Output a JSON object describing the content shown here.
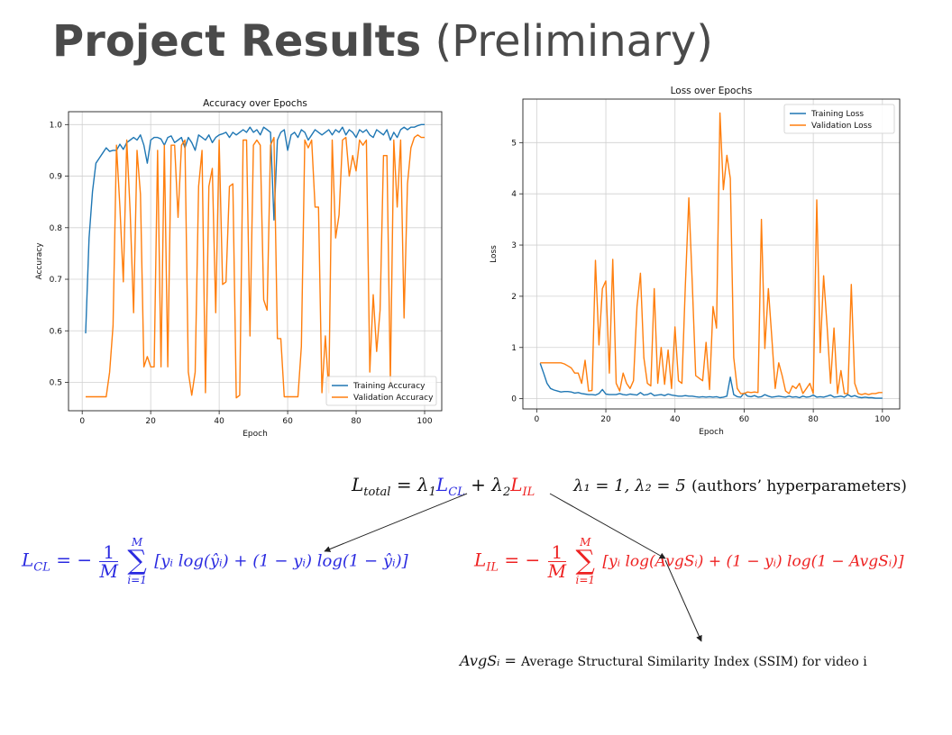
{
  "slide": {
    "title_bold": "Project Results",
    "title_light": "(Preliminary)"
  },
  "chart_data": [
    {
      "type": "line",
      "title": "Accuracy over Epochs",
      "xlabel": "Epoch",
      "ylabel": "Accuracy",
      "xlim": [
        -4,
        105
      ],
      "ylim": [
        0.445,
        1.025
      ],
      "xticks": [
        0,
        20,
        40,
        60,
        80,
        100
      ],
      "yticks": [
        0.5,
        0.6,
        0.7,
        0.8,
        0.9,
        1.0
      ],
      "xtick_labels": [
        "0",
        "20",
        "40",
        "60",
        "80",
        "100"
      ],
      "ytick_labels": [
        "0.5",
        "0.6",
        "0.7",
        "0.8",
        "0.9",
        "1.0"
      ],
      "grid": true,
      "legend_position": "lower-right",
      "x": [
        1,
        2,
        3,
        4,
        5,
        6,
        7,
        8,
        9,
        10,
        11,
        12,
        13,
        14,
        15,
        16,
        17,
        18,
        19,
        20,
        21,
        22,
        23,
        24,
        25,
        26,
        27,
        28,
        29,
        30,
        31,
        32,
        33,
        34,
        35,
        36,
        37,
        38,
        39,
        40,
        41,
        42,
        43,
        44,
        45,
        46,
        47,
        48,
        49,
        50,
        51,
        52,
        53,
        54,
        55,
        56,
        57,
        58,
        59,
        60,
        61,
        62,
        63,
        64,
        65,
        66,
        67,
        68,
        69,
        70,
        71,
        72,
        73,
        74,
        75,
        76,
        77,
        78,
        79,
        80,
        81,
        82,
        83,
        84,
        85,
        86,
        87,
        88,
        89,
        90,
        91,
        92,
        93,
        94,
        95,
        96,
        97,
        98,
        99,
        100
      ],
      "series": [
        {
          "name": "Training Accuracy",
          "color": "#1f77b4",
          "values": [
            0.595,
            0.78,
            0.87,
            0.925,
            0.935,
            0.945,
            0.955,
            0.948,
            0.95,
            0.95,
            0.962,
            0.952,
            0.965,
            0.97,
            0.975,
            0.97,
            0.98,
            0.96,
            0.925,
            0.97,
            0.975,
            0.975,
            0.972,
            0.96,
            0.975,
            0.978,
            0.965,
            0.97,
            0.975,
            0.955,
            0.975,
            0.965,
            0.95,
            0.98,
            0.975,
            0.97,
            0.98,
            0.965,
            0.975,
            0.98,
            0.982,
            0.985,
            0.975,
            0.985,
            0.98,
            0.985,
            0.99,
            0.985,
            0.995,
            0.985,
            0.99,
            0.98,
            0.995,
            0.99,
            0.985,
            0.815,
            0.97,
            0.985,
            0.99,
            0.95,
            0.98,
            0.985,
            0.975,
            0.99,
            0.985,
            0.97,
            0.98,
            0.99,
            0.985,
            0.98,
            0.985,
            0.99,
            0.98,
            0.99,
            0.985,
            0.995,
            0.98,
            0.99,
            0.985,
            0.975,
            0.99,
            0.985,
            0.99,
            0.98,
            0.975,
            0.99,
            0.985,
            0.98,
            0.99,
            0.97,
            0.985,
            0.975,
            0.99,
            0.995,
            0.99,
            0.995,
            0.995,
            0.998,
            1.0,
            1.0
          ]
        },
        {
          "name": "Validation Accuracy",
          "color": "#ff7f0e",
          "values": [
            0.472,
            0.472,
            0.472,
            0.472,
            0.472,
            0.472,
            0.472,
            0.52,
            0.61,
            0.96,
            0.84,
            0.695,
            0.97,
            0.83,
            0.635,
            0.95,
            0.865,
            0.53,
            0.55,
            0.53,
            0.53,
            0.95,
            0.53,
            0.96,
            0.53,
            0.96,
            0.96,
            0.82,
            0.96,
            0.97,
            0.52,
            0.475,
            0.52,
            0.88,
            0.95,
            0.48,
            0.88,
            0.915,
            0.635,
            0.97,
            0.69,
            0.695,
            0.88,
            0.885,
            0.47,
            0.475,
            0.97,
            0.97,
            0.59,
            0.96,
            0.97,
            0.96,
            0.66,
            0.64,
            0.96,
            0.975,
            0.585,
            0.585,
            0.472,
            0.472,
            0.472,
            0.472,
            0.472,
            0.57,
            0.97,
            0.955,
            0.97,
            0.84,
            0.84,
            0.48,
            0.59,
            0.48,
            0.97,
            0.78,
            0.825,
            0.97,
            0.975,
            0.9,
            0.94,
            0.91,
            0.97,
            0.96,
            0.97,
            0.52,
            0.67,
            0.56,
            0.64,
            0.94,
            0.94,
            0.5,
            0.97,
            0.84,
            0.97,
            0.625,
            0.885,
            0.955,
            0.975,
            0.98,
            0.975,
            0.975
          ]
        }
      ]
    },
    {
      "type": "line",
      "title": "Loss over Epochs",
      "xlabel": "Epoch",
      "ylabel": "Loss",
      "xlim": [
        -4,
        105
      ],
      "ylim": [
        -0.2,
        5.85
      ],
      "xticks": [
        0,
        20,
        40,
        60,
        80,
        100
      ],
      "yticks": [
        0,
        1,
        2,
        3,
        4,
        5
      ],
      "xtick_labels": [
        "0",
        "20",
        "40",
        "60",
        "80",
        "100"
      ],
      "ytick_labels": [
        "0",
        "1",
        "2",
        "3",
        "4",
        "5"
      ],
      "grid": true,
      "legend_position": "upper-right",
      "x": [
        1,
        2,
        3,
        4,
        5,
        6,
        7,
        8,
        9,
        10,
        11,
        12,
        13,
        14,
        15,
        16,
        17,
        18,
        19,
        20,
        21,
        22,
        23,
        24,
        25,
        26,
        27,
        28,
        29,
        30,
        31,
        32,
        33,
        34,
        35,
        36,
        37,
        38,
        39,
        40,
        41,
        42,
        43,
        44,
        45,
        46,
        47,
        48,
        49,
        50,
        51,
        52,
        53,
        54,
        55,
        56,
        57,
        58,
        59,
        60,
        61,
        62,
        63,
        64,
        65,
        66,
        67,
        68,
        69,
        70,
        71,
        72,
        73,
        74,
        75,
        76,
        77,
        78,
        79,
        80,
        81,
        82,
        83,
        84,
        85,
        86,
        87,
        88,
        89,
        90,
        91,
        92,
        93,
        94,
        95,
        96,
        97,
        98,
        99,
        100
      ],
      "series": [
        {
          "name": "Training Loss",
          "color": "#1f77b4",
          "values": [
            0.69,
            0.5,
            0.3,
            0.2,
            0.17,
            0.15,
            0.13,
            0.14,
            0.14,
            0.13,
            0.11,
            0.12,
            0.1,
            0.09,
            0.08,
            0.08,
            0.07,
            0.1,
            0.18,
            0.09,
            0.08,
            0.08,
            0.08,
            0.1,
            0.08,
            0.07,
            0.09,
            0.08,
            0.07,
            0.12,
            0.07,
            0.08,
            0.11,
            0.06,
            0.07,
            0.08,
            0.06,
            0.09,
            0.07,
            0.06,
            0.05,
            0.05,
            0.06,
            0.05,
            0.05,
            0.04,
            0.03,
            0.04,
            0.03,
            0.04,
            0.03,
            0.04,
            0.02,
            0.03,
            0.05,
            0.42,
            0.08,
            0.04,
            0.03,
            0.11,
            0.05,
            0.04,
            0.06,
            0.03,
            0.04,
            0.08,
            0.05,
            0.03,
            0.04,
            0.05,
            0.04,
            0.03,
            0.05,
            0.03,
            0.04,
            0.02,
            0.05,
            0.03,
            0.04,
            0.07,
            0.03,
            0.04,
            0.03,
            0.05,
            0.07,
            0.03,
            0.04,
            0.05,
            0.03,
            0.08,
            0.04,
            0.06,
            0.03,
            0.02,
            0.03,
            0.02,
            0.02,
            0.01,
            0.01,
            0.01
          ]
        },
        {
          "name": "Validation Loss",
          "color": "#ff7f0e",
          "values": [
            0.7,
            0.7,
            0.7,
            0.7,
            0.7,
            0.7,
            0.7,
            0.68,
            0.64,
            0.6,
            0.5,
            0.5,
            0.3,
            0.75,
            0.15,
            0.16,
            2.7,
            1.05,
            2.15,
            2.3,
            0.5,
            2.72,
            0.3,
            0.15,
            0.5,
            0.3,
            0.2,
            0.35,
            1.8,
            2.45,
            0.8,
            0.3,
            0.25,
            2.15,
            0.3,
            1.0,
            0.28,
            0.95,
            0.2,
            1.4,
            0.35,
            0.3,
            2.2,
            3.92,
            2.25,
            0.45,
            0.4,
            0.35,
            1.1,
            0.18,
            1.8,
            1.38,
            5.58,
            4.08,
            4.75,
            4.3,
            0.8,
            0.2,
            0.1,
            0.1,
            0.13,
            0.12,
            0.13,
            0.12,
            3.5,
            0.98,
            2.15,
            1.2,
            0.2,
            0.7,
            0.45,
            0.15,
            0.1,
            0.25,
            0.2,
            0.3,
            0.1,
            0.2,
            0.3,
            0.1,
            3.88,
            0.9,
            2.4,
            1.4,
            0.3,
            1.38,
            0.1,
            0.55,
            0.1,
            0.1,
            2.23,
            0.3,
            0.1,
            0.08,
            0.1,
            0.08,
            0.1,
            0.1,
            0.12,
            0.12
          ]
        }
      ]
    }
  ],
  "equations": {
    "total": {
      "l": "L",
      "total_sub": "total",
      "eq": "=",
      "lambda1": "λ",
      "sub1": "1",
      "lcl": "L",
      "cl_sub": "CL",
      "plus": "+",
      "lambda2": "λ",
      "sub2": "2",
      "lil": "L",
      "il_sub": "IL",
      "hyper": "λ₁ = 1, λ₂ = 5",
      "hyper_note": "(authors’ hyperparameters)"
    },
    "cl": {
      "lhs": "L",
      "lhs_sub": "CL",
      "eq": "= −",
      "frac_num": "1",
      "frac_den": "M",
      "sum_top": "M",
      "sum_bottom": "i=1",
      "body": "[yᵢ log(ŷᵢ) + (1 − yᵢ) log(1 − ŷᵢ)]"
    },
    "il": {
      "lhs": "L",
      "lhs_sub": "IL",
      "eq": "= −",
      "frac_num": "1",
      "frac_den": "M",
      "sum_top": "M",
      "sum_bottom": "i=1",
      "body": "[yᵢ log(AvgSᵢ) + (1 − yᵢ) log(1 − AvgSᵢ)]"
    },
    "avgs": {
      "lhs": "AvgSᵢ",
      "eq": "=",
      "desc": "Average Structural Similarity Index (SSIM) for video i"
    }
  }
}
